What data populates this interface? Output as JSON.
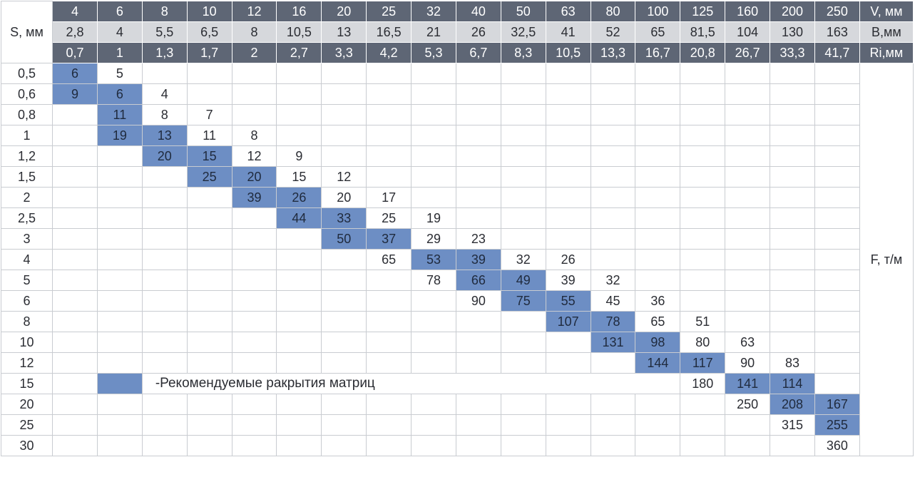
{
  "header": {
    "s_label": "S, мм",
    "v_unit": "V, мм",
    "b_unit": "B,мм",
    "ri_unit": "Ri,мм",
    "v": [
      "4",
      "6",
      "8",
      "10",
      "12",
      "16",
      "20",
      "25",
      "32",
      "40",
      "50",
      "63",
      "80",
      "100",
      "125",
      "160",
      "200",
      "250"
    ],
    "b": [
      "2,8",
      "4",
      "5,5",
      "6,5",
      "8",
      "10,5",
      "13",
      "16,5",
      "21",
      "26",
      "32,5",
      "41",
      "52",
      "65",
      "81,5",
      "104",
      "130",
      "163"
    ],
    "ri": [
      "0,7",
      "1",
      "1,3",
      "1,7",
      "2",
      "2,7",
      "3,3",
      "4,2",
      "5,3",
      "6,7",
      "8,3",
      "10,5",
      "13,3",
      "16,7",
      "20,8",
      "26,7",
      "33,3",
      "41,7"
    ]
  },
  "force_unit": "F, т/м",
  "legend": "-Рекомендуемые ракрытия матриц",
  "colors": {
    "header_dark": "#5e6675",
    "header_light": "#d6d8dc",
    "recommended": "#6d8ec4",
    "grid": "#c9ccd1"
  },
  "rows": [
    {
      "s": "0,5",
      "start": 0,
      "values": [
        "6",
        "5"
      ],
      "rec": [
        0
      ]
    },
    {
      "s": "0,6",
      "start": 0,
      "values": [
        "9",
        "6",
        "4"
      ],
      "rec": [
        0,
        1
      ]
    },
    {
      "s": "0,8",
      "start": 1,
      "values": [
        "11",
        "8",
        "7"
      ],
      "rec": [
        0
      ]
    },
    {
      "s": "1",
      "start": 1,
      "values": [
        "19",
        "13",
        "11",
        "8"
      ],
      "rec": [
        0,
        1
      ]
    },
    {
      "s": "1,2",
      "start": 2,
      "values": [
        "20",
        "15",
        "12",
        "9"
      ],
      "rec": [
        0,
        1
      ]
    },
    {
      "s": "1,5",
      "start": 3,
      "values": [
        "25",
        "20",
        "15",
        "12"
      ],
      "rec": [
        0,
        1
      ]
    },
    {
      "s": "2",
      "start": 4,
      "values": [
        "39",
        "26",
        "20",
        "17"
      ],
      "rec": [
        0,
        1
      ]
    },
    {
      "s": "2,5",
      "start": 5,
      "values": [
        "44",
        "33",
        "25",
        "19"
      ],
      "rec": [
        0,
        1
      ]
    },
    {
      "s": "3",
      "start": 6,
      "values": [
        "50",
        "37",
        "29",
        "23"
      ],
      "rec": [
        0,
        1
      ]
    },
    {
      "s": "4",
      "start": 7,
      "values": [
        "65",
        "53",
        "39",
        "32",
        "26"
      ],
      "rec": [
        1,
        2
      ]
    },
    {
      "s": "5",
      "start": 8,
      "values": [
        "78",
        "66",
        "49",
        "39",
        "32"
      ],
      "rec": [
        1,
        2
      ]
    },
    {
      "s": "6",
      "start": 9,
      "values": [
        "90",
        "75",
        "55",
        "45",
        "36"
      ],
      "rec": [
        1,
        2
      ]
    },
    {
      "s": "8",
      "start": 11,
      "values": [
        "107",
        "78",
        "65",
        "51"
      ],
      "rec": [
        0,
        1
      ]
    },
    {
      "s": "10",
      "start": 12,
      "values": [
        "131",
        "98",
        "80",
        "63"
      ],
      "rec": [
        0,
        1
      ]
    },
    {
      "s": "12",
      "start": 13,
      "values": [
        "144",
        "117",
        "90",
        "83"
      ],
      "rec": [
        0,
        1
      ]
    },
    {
      "s": "15",
      "start": 14,
      "values": [
        "180",
        "141",
        "114"
      ],
      "rec": [
        1,
        2
      ]
    },
    {
      "s": "20",
      "start": 15,
      "values": [
        "250",
        "208",
        "167"
      ],
      "rec": [
        1,
        2
      ]
    },
    {
      "s": "25",
      "start": 16,
      "values": [
        "315",
        "255"
      ],
      "rec": [
        1
      ]
    },
    {
      "s": "30",
      "start": 17,
      "values": [
        "360"
      ],
      "rec": []
    }
  ]
}
